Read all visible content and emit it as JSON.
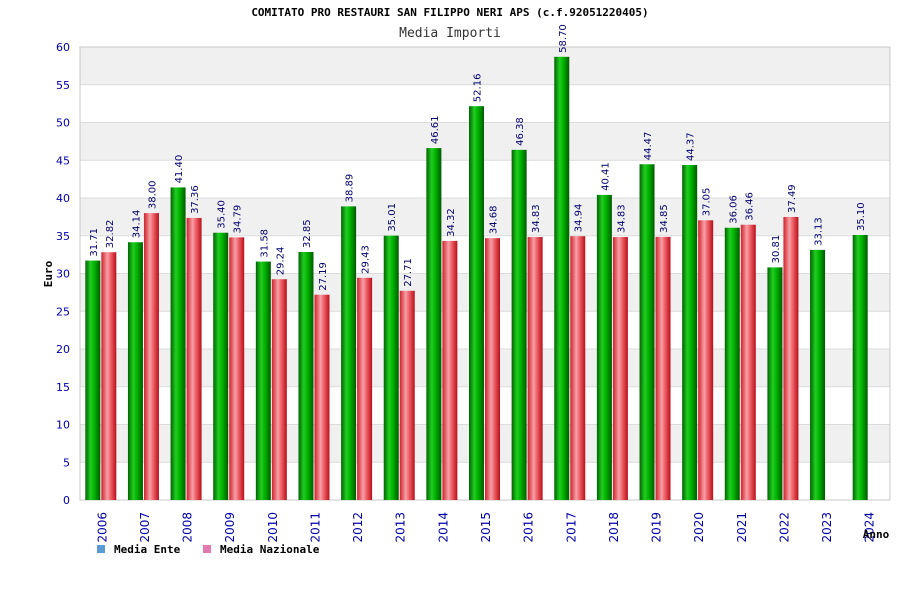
{
  "chart_data": {
    "type": "bar",
    "title": "COMITATO PRO RESTAURI SAN FILIPPO NERI APS (c.f.92051220405)",
    "subtitle": "Media Importi",
    "xlabel": "Anno",
    "ylabel": "Euro",
    "ylim": [
      0,
      60
    ],
    "yticks": [
      0,
      5,
      10,
      15,
      20,
      25,
      30,
      35,
      40,
      45,
      50,
      55,
      60
    ],
    "grid": true,
    "legend_position": "bottom-left",
    "categories": [
      "2006",
      "2007",
      "2008",
      "2009",
      "2010",
      "2011",
      "2012",
      "2013",
      "2014",
      "2015",
      "2016",
      "2017",
      "2018",
      "2019",
      "2020",
      "2021",
      "2022",
      "2023",
      "2024"
    ],
    "series": [
      {
        "name": "Media Ente",
        "color": "#00a800",
        "legend_color": "#5b9bd5",
        "values": [
          31.71,
          34.14,
          41.4,
          35.4,
          31.58,
          32.85,
          38.89,
          35.01,
          46.61,
          52.16,
          46.38,
          58.7,
          40.41,
          44.47,
          44.37,
          36.06,
          30.81,
          33.13,
          35.1
        ],
        "labels": [
          "31.71",
          "34.14",
          "41.40",
          "35.40",
          "31.58",
          "32.85",
          "38.89",
          "35.01",
          "46.61",
          "52.16",
          "46.38",
          "58.70",
          "40.41",
          "44.47",
          "44.37",
          "36.06",
          "30.81",
          "33.13",
          "35.10"
        ]
      },
      {
        "name": "Media Nazionale",
        "color": "#e8303a",
        "legend_color": "#e07ab0",
        "values": [
          32.82,
          38.0,
          37.36,
          34.79,
          29.24,
          27.19,
          29.43,
          27.71,
          34.32,
          34.68,
          34.83,
          34.94,
          34.83,
          34.85,
          37.05,
          36.46,
          37.49,
          null,
          null
        ],
        "labels": [
          "32.82",
          "38.00",
          "37.36",
          "34.79",
          "29.24",
          "27.19",
          "29.43",
          "27.71",
          "34.32",
          "34.68",
          "34.83",
          "34.94",
          "34.83",
          "34.85",
          "37.05",
          "36.46",
          "37.49",
          "",
          ""
        ]
      }
    ]
  }
}
